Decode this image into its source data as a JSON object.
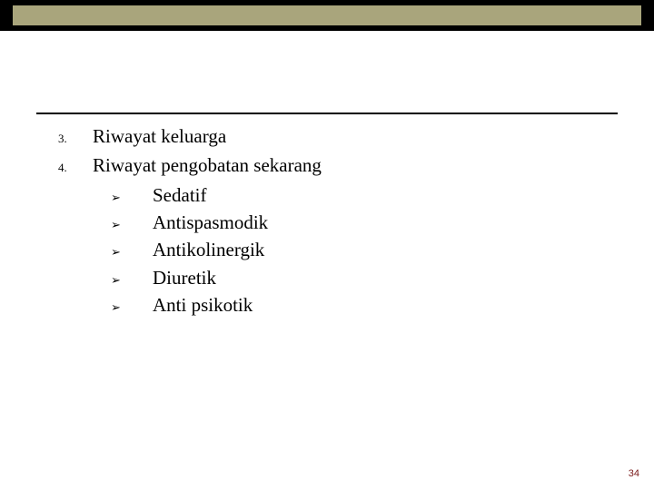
{
  "colors": {
    "header_background": "#000000",
    "header_bar": "#a9a57c",
    "rule": "#000000",
    "text": "#000000",
    "page_number": "#7a1a1a",
    "page_background": "#ffffff"
  },
  "typography": {
    "body_font": "Times New Roman",
    "body_size_pt": 16,
    "number_size_pt": 10,
    "bullet_size_pt": 10,
    "page_number_size_pt": 8
  },
  "numbered": [
    {
      "n": "3.",
      "text": "Riwayat keluarga"
    },
    {
      "n": "4.",
      "text": "Riwayat pengobatan sekarang"
    }
  ],
  "bullet_glyph": "➢",
  "subitems": [
    "Sedatif",
    "Antispasmodik",
    "Antikolinergik",
    "Diuretik",
    "Anti psikotik"
  ],
  "page_number": "34"
}
